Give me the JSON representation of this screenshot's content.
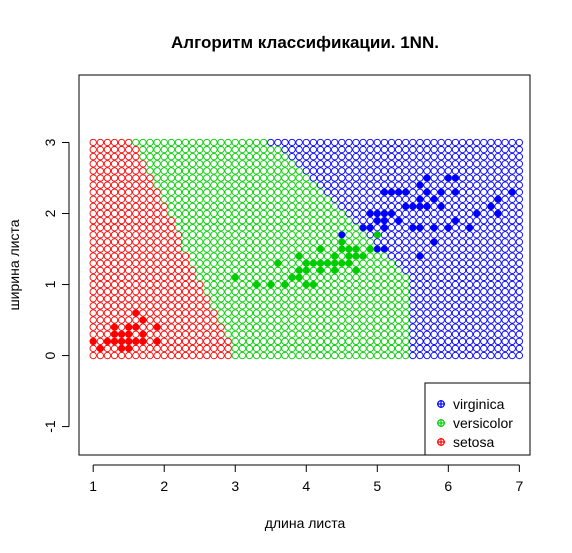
{
  "chart_data": {
    "type": "scatter",
    "title": "Алгоритм классификации. 1NN.",
    "xlabel": "длина листа",
    "ylabel": "ширина листа",
    "xlim": [
      0.8,
      7.15
    ],
    "ylim": [
      -1.4,
      3.95
    ],
    "x_ticks": [
      "1",
      "2",
      "3",
      "4",
      "5",
      "6",
      "7"
    ],
    "y_ticks": [
      "-1",
      "0",
      "1",
      "2",
      "3"
    ],
    "x_tick_values": [
      1,
      2,
      3,
      4,
      5,
      6,
      7
    ],
    "y_tick_values": [
      -1,
      0,
      1,
      2,
      3
    ],
    "grid": {
      "x_range": [
        1,
        7
      ],
      "y_range": [
        0,
        3
      ],
      "step": 0.1,
      "marker": "open-circle",
      "boundaries": [
        {
          "between": [
            "setosa",
            "versicolor"
          ],
          "line": [
            [
              1.6,
              3.0
            ],
            [
              3.0,
              0.0
            ]
          ]
        },
        {
          "between": [
            "versicolor",
            "virginica"
          ],
          "line": [
            [
              3.5,
              3.0
            ],
            [
              4.75,
              1.8
            ],
            [
              5.4,
              1.2
            ],
            [
              5.45,
              0.0
            ]
          ]
        }
      ]
    },
    "legend": {
      "position": "bottom-right",
      "entries": [
        "virginica",
        "versicolor",
        "setosa"
      ]
    },
    "colors": {
      "setosa": "#ff0000",
      "versicolor": "#00cd00",
      "virginica": "#0000ff"
    },
    "series": [
      {
        "name": "setosa",
        "color": "#ff0000",
        "points": [
          [
            1.0,
            0.2
          ],
          [
            1.1,
            0.1
          ],
          [
            1.2,
            0.2
          ],
          [
            1.3,
            0.2
          ],
          [
            1.3,
            0.3
          ],
          [
            1.3,
            0.4
          ],
          [
            1.4,
            0.1
          ],
          [
            1.4,
            0.2
          ],
          [
            1.4,
            0.3
          ],
          [
            1.5,
            0.1
          ],
          [
            1.5,
            0.2
          ],
          [
            1.5,
            0.3
          ],
          [
            1.5,
            0.4
          ],
          [
            1.6,
            0.2
          ],
          [
            1.6,
            0.4
          ],
          [
            1.6,
            0.6
          ],
          [
            1.7,
            0.2
          ],
          [
            1.7,
            0.3
          ],
          [
            1.7,
            0.5
          ],
          [
            1.9,
            0.2
          ],
          [
            1.9,
            0.4
          ],
          [
            1.5,
            0.2
          ],
          [
            1.4,
            0.2
          ],
          [
            1.6,
            0.2
          ]
        ]
      },
      {
        "name": "versicolor",
        "color": "#00cd00",
        "points": [
          [
            3.0,
            1.1
          ],
          [
            3.3,
            1.0
          ],
          [
            3.5,
            1.0
          ],
          [
            3.6,
            1.3
          ],
          [
            3.7,
            1.0
          ],
          [
            3.8,
            1.1
          ],
          [
            3.9,
            1.1
          ],
          [
            3.9,
            1.2
          ],
          [
            3.9,
            1.4
          ],
          [
            4.0,
            1.0
          ],
          [
            4.0,
            1.2
          ],
          [
            4.0,
            1.3
          ],
          [
            4.1,
            1.0
          ],
          [
            4.1,
            1.3
          ],
          [
            4.2,
            1.2
          ],
          [
            4.2,
            1.3
          ],
          [
            4.2,
            1.5
          ],
          [
            4.3,
            1.3
          ],
          [
            4.4,
            1.2
          ],
          [
            4.4,
            1.3
          ],
          [
            4.4,
            1.4
          ],
          [
            4.5,
            1.3
          ],
          [
            4.5,
            1.5
          ],
          [
            4.5,
            1.6
          ],
          [
            4.6,
            1.3
          ],
          [
            4.6,
            1.4
          ],
          [
            4.6,
            1.5
          ],
          [
            4.7,
            1.2
          ],
          [
            4.7,
            1.4
          ],
          [
            4.7,
            1.5
          ],
          [
            4.8,
            1.4
          ],
          [
            4.8,
            1.8
          ],
          [
            4.9,
            1.5
          ],
          [
            5.0,
            1.7
          ],
          [
            4.6,
            1.3
          ],
          [
            4.1,
            1.0
          ]
        ]
      },
      {
        "name": "virginica",
        "color": "#0000ff",
        "points": [
          [
            4.5,
            1.7
          ],
          [
            4.8,
            1.8
          ],
          [
            4.9,
            1.8
          ],
          [
            4.9,
            2.0
          ],
          [
            5.0,
            1.5
          ],
          [
            5.0,
            1.9
          ],
          [
            5.0,
            2.0
          ],
          [
            5.1,
            1.5
          ],
          [
            5.1,
            1.8
          ],
          [
            5.1,
            1.9
          ],
          [
            5.1,
            2.0
          ],
          [
            5.1,
            2.3
          ],
          [
            5.2,
            2.0
          ],
          [
            5.2,
            2.3
          ],
          [
            5.3,
            1.9
          ],
          [
            5.3,
            2.3
          ],
          [
            5.4,
            2.1
          ],
          [
            5.4,
            2.3
          ],
          [
            5.5,
            1.8
          ],
          [
            5.5,
            2.1
          ],
          [
            5.6,
            1.4
          ],
          [
            5.6,
            1.8
          ],
          [
            5.6,
            2.1
          ],
          [
            5.6,
            2.2
          ],
          [
            5.6,
            2.4
          ],
          [
            5.7,
            2.1
          ],
          [
            5.7,
            2.3
          ],
          [
            5.7,
            2.5
          ],
          [
            5.8,
            1.6
          ],
          [
            5.8,
            1.8
          ],
          [
            5.8,
            2.2
          ],
          [
            5.9,
            2.1
          ],
          [
            5.9,
            2.3
          ],
          [
            6.0,
            1.8
          ],
          [
            6.0,
            2.5
          ],
          [
            6.1,
            1.9
          ],
          [
            6.1,
            2.3
          ],
          [
            6.1,
            2.5
          ],
          [
            6.3,
            1.8
          ],
          [
            6.4,
            2.0
          ],
          [
            6.6,
            2.1
          ],
          [
            6.7,
            2.0
          ],
          [
            6.7,
            2.2
          ],
          [
            6.9,
            2.3
          ]
        ]
      }
    ]
  }
}
